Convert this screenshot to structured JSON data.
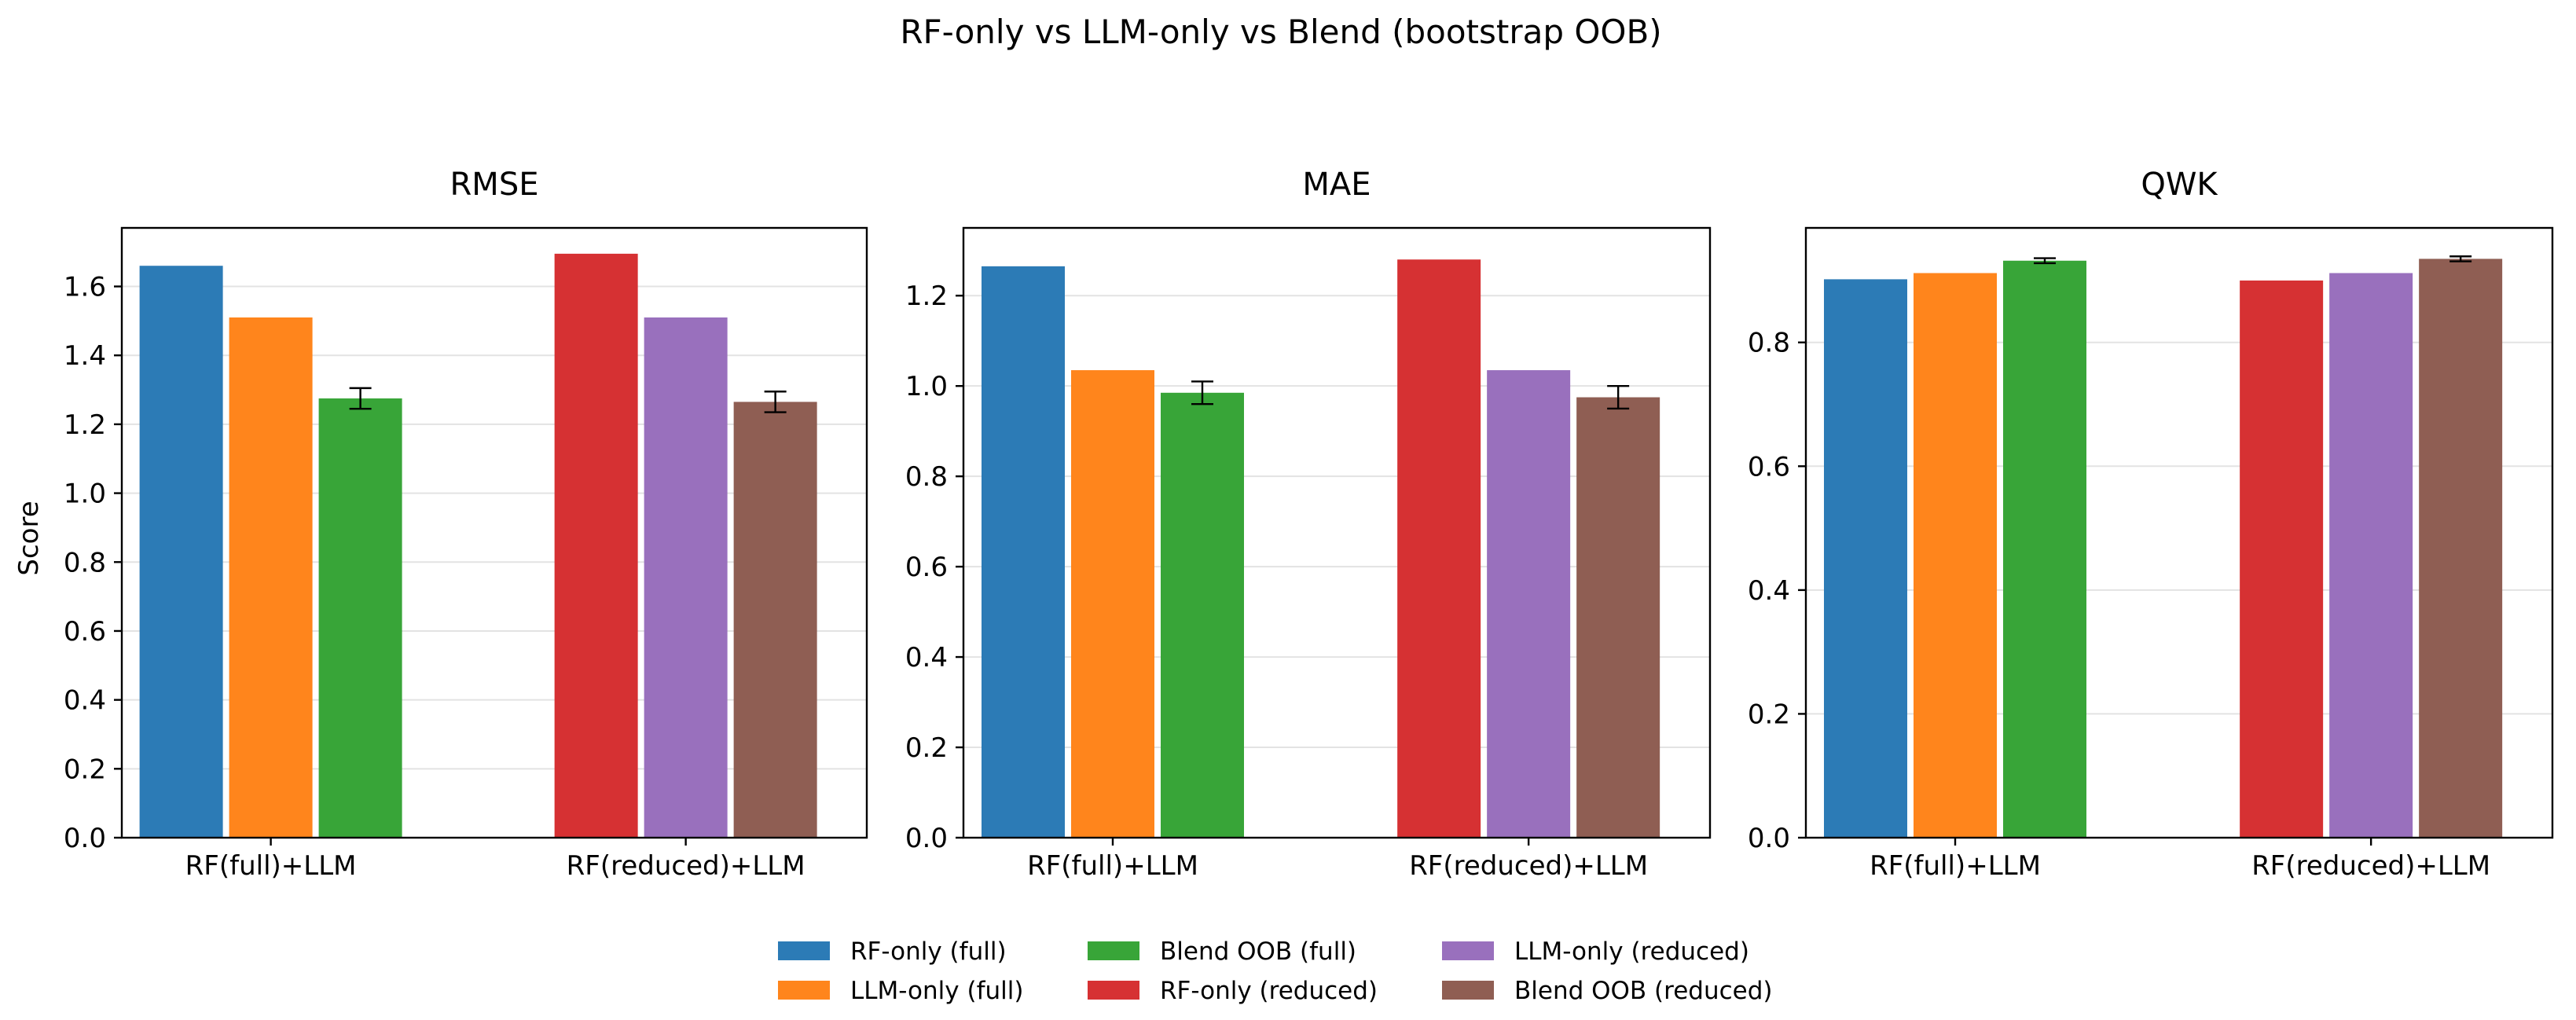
{
  "chart_data": {
    "type": "bar",
    "title": "RF-only vs LLM-only vs Blend (bootstrap OOB)",
    "ylabel": "Score",
    "categories": [
      "RF(full)+LLM",
      "RF(reduced)+LLM"
    ],
    "legend": {
      "placement": "bottom-center",
      "columns": 3,
      "entries": [
        {
          "name": "RF-only (full)",
          "color": "#2c7bb6"
        },
        {
          "name": "LLM-only (full)",
          "color": "#ff851c"
        },
        {
          "name": "Blend OOB (full)",
          "color": "#38a538"
        },
        {
          "name": "RF-only (reduced)",
          "color": "#d63133"
        },
        {
          "name": "LLM-only (reduced)",
          "color": "#9970bd"
        },
        {
          "name": "Blend OOB (reduced)",
          "color": "#8f5e53"
        }
      ]
    },
    "panels": [
      {
        "title": "RMSE",
        "ylim": [
          0,
          1.77
        ],
        "yticks": [
          "0.0",
          "0.2",
          "0.4",
          "0.6",
          "0.8",
          "1.0",
          "1.2",
          "1.4",
          "1.6"
        ],
        "grid": true,
        "groups": [
          {
            "category": "RF(full)+LLM",
            "bars": [
              {
                "series": "RF-only (full)",
                "value": 1.66
              },
              {
                "series": "LLM-only (full)",
                "value": 1.51
              },
              {
                "series": "Blend OOB (full)",
                "value": 1.275,
                "err": 0.03
              }
            ]
          },
          {
            "category": "RF(reduced)+LLM",
            "bars": [
              {
                "series": "RF-only (reduced)",
                "value": 1.695
              },
              {
                "series": "LLM-only (reduced)",
                "value": 1.51
              },
              {
                "series": "Blend OOB (reduced)",
                "value": 1.265,
                "err": 0.03
              }
            ]
          }
        ]
      },
      {
        "title": "MAE",
        "ylim": [
          0,
          1.35
        ],
        "yticks": [
          "0.0",
          "0.2",
          "0.4",
          "0.6",
          "0.8",
          "1.0",
          "1.2"
        ],
        "grid": true,
        "groups": [
          {
            "category": "RF(full)+LLM",
            "bars": [
              {
                "series": "RF-only (full)",
                "value": 1.265
              },
              {
                "series": "LLM-only (full)",
                "value": 1.035
              },
              {
                "series": "Blend OOB (full)",
                "value": 0.985,
                "err": 0.025
              }
            ]
          },
          {
            "category": "RF(reduced)+LLM",
            "bars": [
              {
                "series": "RF-only (reduced)",
                "value": 1.28
              },
              {
                "series": "LLM-only (reduced)",
                "value": 1.035
              },
              {
                "series": "Blend OOB (reduced)",
                "value": 0.975,
                "err": 0.025
              }
            ]
          }
        ]
      },
      {
        "title": "QWK",
        "ylim": [
          0,
          0.985
        ],
        "yticks": [
          "0.0",
          "0.2",
          "0.4",
          "0.6",
          "0.8"
        ],
        "grid": true,
        "groups": [
          {
            "category": "RF(full)+LLM",
            "bars": [
              {
                "series": "RF-only (full)",
                "value": 0.902
              },
              {
                "series": "LLM-only (full)",
                "value": 0.912
              },
              {
                "series": "Blend OOB (full)",
                "value": 0.932,
                "err": 0.004
              }
            ]
          },
          {
            "category": "RF(reduced)+LLM",
            "bars": [
              {
                "series": "RF-only (reduced)",
                "value": 0.9
              },
              {
                "series": "LLM-only (reduced)",
                "value": 0.912
              },
              {
                "series": "Blend OOB (reduced)",
                "value": 0.935,
                "err": 0.004
              }
            ]
          }
        ]
      }
    ]
  }
}
